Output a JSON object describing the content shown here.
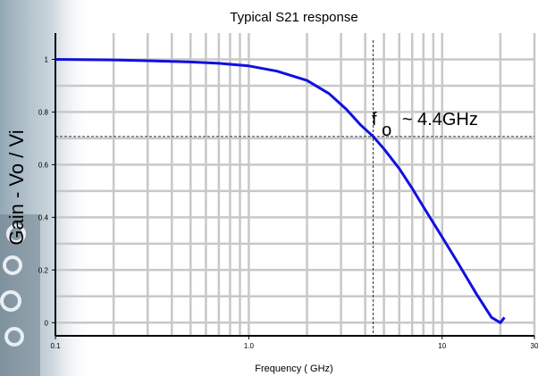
{
  "chart_data": {
    "type": "line",
    "title": "Typical S21 response",
    "xlabel": "Frequency ( GHz)",
    "ylabel": "Gain - Vo / Vi",
    "x_scale": "log",
    "xlim": [
      0.1,
      30
    ],
    "ylim": [
      -0.05,
      1.1
    ],
    "x_tick_labels": [
      {
        "value": 0.1,
        "label": "0.1"
      },
      {
        "value": 1,
        "label": "1.0"
      },
      {
        "value": 10,
        "label": "10"
      },
      {
        "value": 30,
        "label": "30"
      }
    ],
    "y_tick_labels": [
      {
        "value": 0,
        "label": "0"
      },
      {
        "value": 0.2,
        "label": "0.2"
      },
      {
        "value": 0.4,
        "label": "0.4"
      },
      {
        "value": 0.6,
        "label": "0.6"
      },
      {
        "value": 0.8,
        "label": "0.8"
      },
      {
        "value": 1,
        "label": "1"
      }
    ],
    "grid": true,
    "series": [
      {
        "color": "#1010e0",
        "x": [
          0.1,
          0.2,
          0.3,
          0.5,
          0.7,
          1.0,
          1.4,
          2.0,
          2.6,
          3.2,
          3.8,
          4.4,
          5.0,
          6.0,
          7.0,
          8.0,
          10.0,
          12.0,
          15.0,
          18.0,
          20.0,
          21.0
        ],
        "y": [
          1.0,
          0.998,
          0.995,
          0.99,
          0.985,
          0.975,
          0.955,
          0.92,
          0.87,
          0.81,
          0.75,
          0.707,
          0.66,
          0.585,
          0.51,
          0.44,
          0.325,
          0.23,
          0.11,
          0.02,
          0.0,
          0.02
        ]
      }
    ],
    "reference_lines": {
      "horizontal_y": 0.707,
      "vertical_x": 4.4,
      "style": "dashed"
    },
    "annotation": {
      "main": "f",
      "subscript": "o",
      "rest": "~ 4.4GHz"
    }
  },
  "colors": {
    "curve": "#1010e0",
    "grid": "#c8c8c8",
    "axes": "#000000"
  }
}
